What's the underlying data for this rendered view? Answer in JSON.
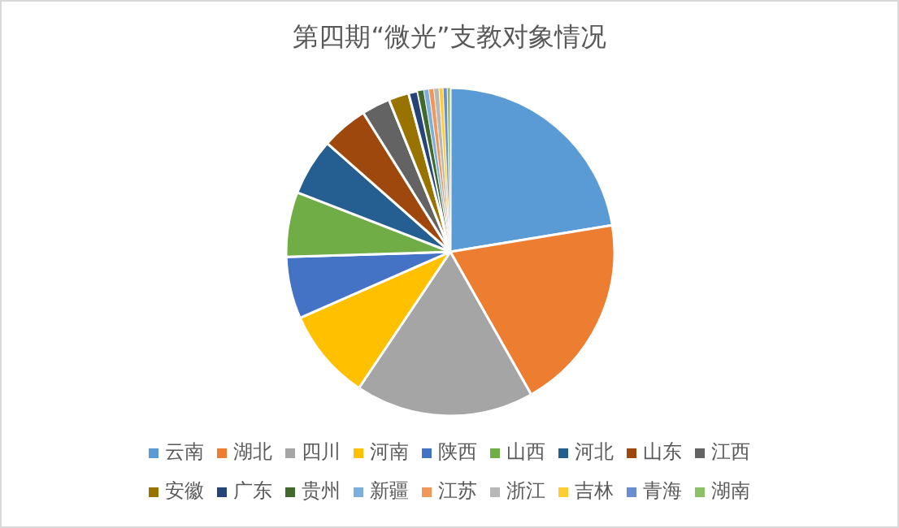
{
  "chart_data": {
    "type": "pie",
    "title": "第四期“微光”支教对象情况",
    "legend": "bottom",
    "categories": [
      "云南",
      "湖北",
      "四川",
      "河南",
      "陕西",
      "山西",
      "河北",
      "山东",
      "江西",
      "安徽",
      "广东",
      "贵州",
      "新疆",
      "江苏",
      "浙江",
      "吉林",
      "青海",
      "湖南"
    ],
    "values": [
      22.4,
      19.4,
      17.6,
      9,
      6.1,
      6.4,
      5.6,
      4.6,
      2.8,
      2,
      0.9,
      0.6,
      0.5,
      0.5,
      0.5,
      0.4,
      0.4,
      0.3
    ],
    "colors": [
      "#5b9bd5",
      "#ed7d31",
      "#a5a5a5",
      "#ffc000",
      "#4472c4",
      "#70ad47",
      "#255e91",
      "#9e480e",
      "#636363",
      "#997300",
      "#264478",
      "#43682b",
      "#7cafdd",
      "#f1975a",
      "#b7b7b7",
      "#ffcd33",
      "#698ed0",
      "#8cc168"
    ]
  }
}
